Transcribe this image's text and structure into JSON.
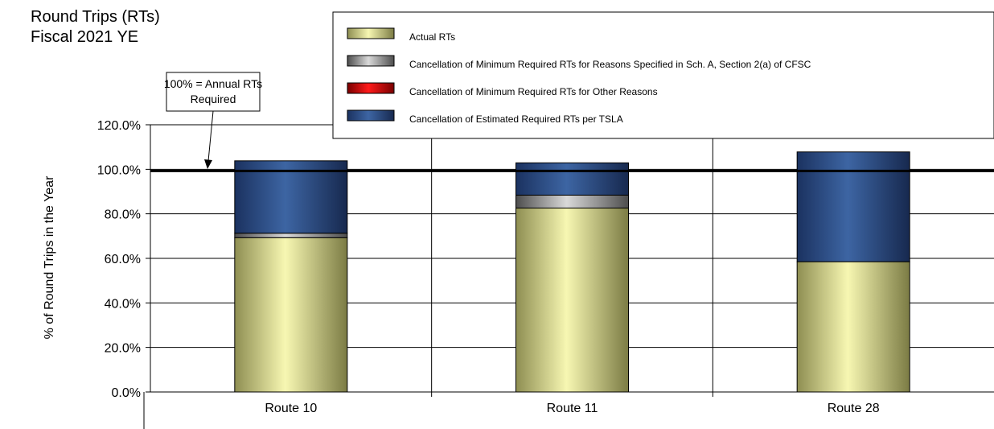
{
  "chart_data": {
    "type": "bar",
    "stacked": true,
    "title_lines": [
      "Round Trips (RTs)",
      "Fiscal 2021 YE"
    ],
    "ylabel": "% of Round Trips in the Year",
    "xlabel": "",
    "ylim": [
      0,
      120
    ],
    "ytick_step": 20,
    "ytick_labels": [
      "0.0%",
      "20.0%",
      "40.0%",
      "60.0%",
      "80.0%",
      "100.0%",
      "120.0%"
    ],
    "categories": [
      "Route 10",
      "Route 11",
      "Route 28"
    ],
    "grid": true,
    "legend_position": "top-right",
    "series": [
      {
        "name": "Actual RTs",
        "color": "#f2f2a6",
        "values": [
          69.3,
          82.6,
          58.5
        ]
      },
      {
        "name": "Cancellation of Minimum Required RTs for Reasons Specified in Sch. A, Section 2(a) of CFSC",
        "color": "#a0a0a0",
        "values": [
          2.0,
          5.8,
          0.0
        ]
      },
      {
        "name": "Cancellation of Minimum Required RTs for Other Reasons",
        "color": "#e00000",
        "values": [
          0.0,
          0.0,
          0.0
        ]
      },
      {
        "name": "Cancellation of Estimated Required RTs per TSLA",
        "color": "#2c4f86",
        "values": [
          32.5,
          14.5,
          49.3
        ]
      }
    ],
    "reference_line": {
      "value": 100
    },
    "annotation": {
      "lines": [
        "100% = Annual RTs",
        "Required"
      ]
    }
  }
}
